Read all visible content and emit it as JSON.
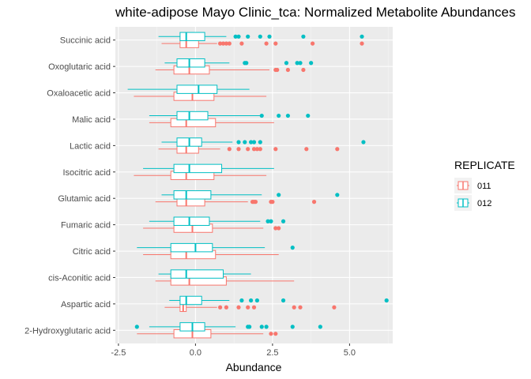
{
  "chart_data": {
    "type": "boxplot",
    "orientation": "horizontal",
    "title": "white-adipose Mayo Clinic_tca: Normalized Metabolite Abundances",
    "xlabel": "Abundance",
    "ylabel": "",
    "xlim": [
      -2.6,
      6.4
    ],
    "xticks": [
      -2.5,
      0.0,
      2.5,
      5.0
    ],
    "xtick_labels": [
      "-2.5",
      "0.0",
      "2.5",
      "5.0"
    ],
    "grid": true,
    "legend": {
      "title": "REPLICATE",
      "placement": "right",
      "entries": [
        {
          "label": "011",
          "color": "#F8766D"
        },
        {
          "label": "012",
          "color": "#00BFC4"
        }
      ]
    },
    "categories": [
      "Succinic acid",
      "Oxoglutaric acid",
      "Oxaloacetic acid",
      "Malic acid",
      "Lactic acid",
      "Isocitric acid",
      "Glutamic acid",
      "Fumaric acid",
      "Citric acid",
      "cis-Aconitic acid",
      "Aspartic acid",
      "2-Hydroxyglutaric acid"
    ],
    "series": [
      {
        "name": "011",
        "color": "#F8766D",
        "boxes": [
          {
            "category": "Succinic acid",
            "whisker_low": -1.1,
            "q1": -0.5,
            "median": -0.3,
            "q3": 0.1,
            "whisker_high": 0.7,
            "outliers": [
              0.8,
              0.9,
              1.0,
              1.1,
              1.5,
              2.3,
              2.6,
              3.8,
              5.4
            ]
          },
          {
            "category": "Oxoglutaric acid",
            "whisker_low": -1.3,
            "q1": -0.7,
            "median": -0.2,
            "q3": 0.45,
            "whisker_high": 2.4,
            "outliers": [
              2.6,
              2.65,
              3.0,
              3.5
            ]
          },
          {
            "category": "Oxaloacetic acid",
            "whisker_low": -2.0,
            "q1": -0.7,
            "median": -0.1,
            "q3": 0.6,
            "whisker_high": 2.3,
            "outliers": []
          },
          {
            "category": "Malic acid",
            "whisker_low": -1.5,
            "q1": -0.8,
            "median": -0.3,
            "q3": 0.65,
            "whisker_high": 2.55,
            "outliers": []
          },
          {
            "category": "Lactic acid",
            "whisker_low": -1.2,
            "q1": -0.6,
            "median": -0.3,
            "q3": 0.1,
            "whisker_high": 0.8,
            "outliers": [
              1.1,
              1.4,
              1.7,
              1.9,
              2.0,
              2.1,
              2.6,
              3.6,
              4.6
            ]
          },
          {
            "category": "Isocitric acid",
            "whisker_low": -2.0,
            "q1": -0.8,
            "median": -0.3,
            "q3": 0.6,
            "whisker_high": 2.3,
            "outliers": []
          },
          {
            "category": "Glutamic acid",
            "whisker_low": -1.3,
            "q1": -0.6,
            "median": -0.3,
            "q3": 0.3,
            "whisker_high": 1.7,
            "outliers": [
              1.85,
              1.9,
              1.95,
              2.45,
              2.5,
              3.85
            ]
          },
          {
            "category": "Fumaric acid",
            "whisker_low": -1.7,
            "q1": -0.7,
            "median": -0.1,
            "q3": 0.55,
            "whisker_high": 2.2,
            "outliers": [
              2.6,
              2.7
            ]
          },
          {
            "category": "Citric acid",
            "whisker_low": -1.7,
            "q1": -0.8,
            "median": -0.3,
            "q3": 0.65,
            "whisker_high": 2.7,
            "outliers": []
          },
          {
            "category": "cis-Aconitic acid",
            "whisker_low": -1.3,
            "q1": -0.8,
            "median": -0.2,
            "q3": 1.0,
            "whisker_high": 3.2,
            "outliers": []
          },
          {
            "category": "Aspartic acid",
            "whisker_low": -1.0,
            "q1": -0.5,
            "median": -0.4,
            "q3": -0.3,
            "whisker_high": 0.7,
            "outliers": [
              0.8,
              1.0,
              1.4,
              1.7,
              1.9,
              3.2,
              3.4,
              4.5
            ]
          },
          {
            "category": "2-Hydroxyglutaric acid",
            "whisker_low": -1.9,
            "q1": -0.7,
            "median": -0.1,
            "q3": 0.5,
            "whisker_high": 2.2,
            "outliers": [
              2.45,
              2.6
            ]
          }
        ]
      },
      {
        "name": "012",
        "color": "#00BFC4",
        "boxes": [
          {
            "category": "Succinic acid",
            "whisker_low": -1.2,
            "q1": -0.5,
            "median": -0.3,
            "q3": 0.3,
            "whisker_high": 1.0,
            "outliers": [
              1.3,
              1.4,
              1.7,
              2.1,
              2.4,
              3.5,
              5.4
            ]
          },
          {
            "category": "Oxoglutaric acid",
            "whisker_low": -1.0,
            "q1": -0.6,
            "median": -0.2,
            "q3": 0.3,
            "whisker_high": 1.1,
            "outliers": [
              1.6,
              1.65,
              2.95,
              3.3,
              3.4,
              3.75
            ]
          },
          {
            "category": "Oxaloacetic acid",
            "whisker_low": -2.2,
            "q1": -0.6,
            "median": 0.1,
            "q3": 0.7,
            "whisker_high": 1.75,
            "outliers": []
          },
          {
            "category": "Malic acid",
            "whisker_low": -1.5,
            "q1": -0.6,
            "median": -0.2,
            "q3": 0.4,
            "whisker_high": 2.1,
            "outliers": [
              2.15,
              2.7,
              3.0,
              3.65
            ]
          },
          {
            "category": "Lactic acid",
            "whisker_low": -1.1,
            "q1": -0.6,
            "median": -0.2,
            "q3": 0.2,
            "whisker_high": 1.2,
            "outliers": [
              1.4,
              1.6,
              1.8,
              1.9,
              2.1,
              5.45
            ]
          },
          {
            "category": "Isocitric acid",
            "whisker_low": -1.7,
            "q1": -0.7,
            "median": -0.2,
            "q3": 0.85,
            "whisker_high": 2.55,
            "outliers": []
          },
          {
            "category": "Glutamic acid",
            "whisker_low": -1.1,
            "q1": -0.7,
            "median": -0.3,
            "q3": 0.5,
            "whisker_high": 2.15,
            "outliers": [
              2.7,
              4.6
            ]
          },
          {
            "category": "Fumaric acid",
            "whisker_low": -1.5,
            "q1": -0.7,
            "median": -0.2,
            "q3": 0.45,
            "whisker_high": 2.1,
            "outliers": [
              2.35,
              2.45,
              2.85
            ]
          },
          {
            "category": "Citric acid",
            "whisker_low": -1.9,
            "q1": -0.8,
            "median": 0.0,
            "q3": 0.55,
            "whisker_high": 2.25,
            "outliers": [
              3.15
            ]
          },
          {
            "category": "cis-Aconitic acid",
            "whisker_low": -1.2,
            "q1": -0.8,
            "median": -0.3,
            "q3": 0.9,
            "whisker_high": 1.8,
            "outliers": []
          },
          {
            "category": "Aspartic acid",
            "whisker_low": -0.85,
            "q1": -0.5,
            "median": -0.3,
            "q3": 0.2,
            "whisker_high": 1.1,
            "outliers": [
              1.5,
              1.8,
              2.0,
              2.85,
              6.2
            ]
          },
          {
            "category": "2-Hydroxyglutaric acid",
            "whisker_low": -1.5,
            "q1": -0.5,
            "median": -0.1,
            "q3": 0.3,
            "whisker_high": 1.3,
            "outliers": [
              -1.9,
              1.7,
              1.75,
              2.15,
              2.3,
              3.15,
              4.05
            ]
          }
        ]
      }
    ]
  }
}
